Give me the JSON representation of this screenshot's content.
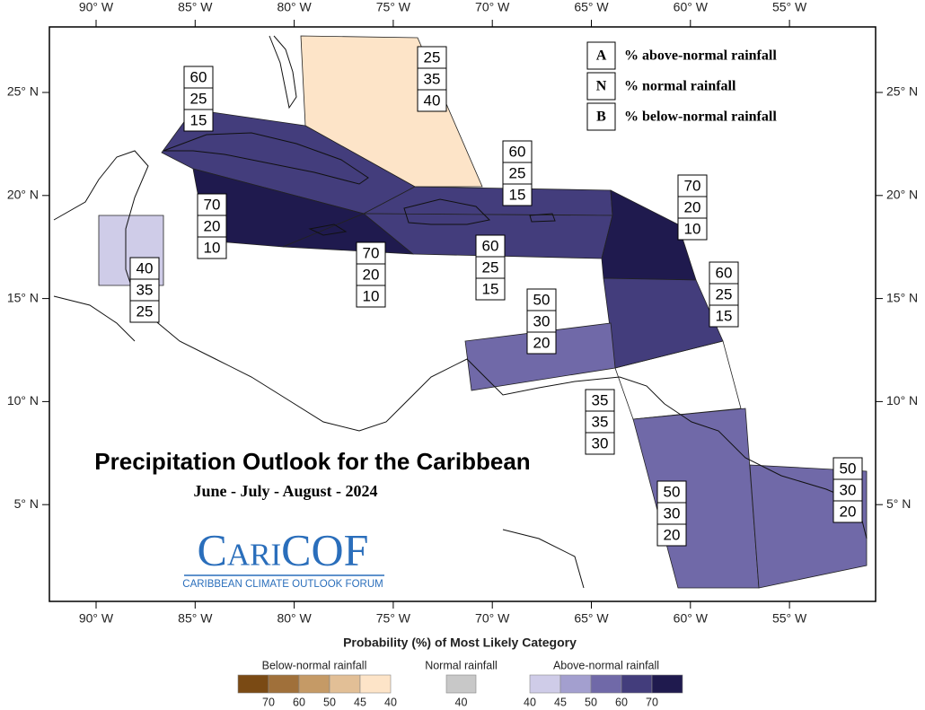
{
  "map": {
    "title": "Precipitation Outlook for the Caribbean",
    "subtitle": "June - July - August - 2024",
    "logo": {
      "name": "CariCOF",
      "tagline": "CARIBBEAN CLIMATE OUTLOOK FORUM"
    },
    "lon_labels": [
      "90° W",
      "85° W",
      "80° W",
      "75° W",
      "70° W",
      "65° W",
      "60° W",
      "55° W"
    ],
    "lat_labels": [
      "25° N",
      "20° N",
      "15° N",
      "10° N",
      "5° N"
    ],
    "key": [
      {
        "letter": "A",
        "text": "% above-normal rainfall"
      },
      {
        "letter": "N",
        "text": "% normal rainfall"
      },
      {
        "letter": "B",
        "text": "% below-normal rainfall"
      }
    ],
    "regions": [
      {
        "values": [
          25,
          35,
          40
        ]
      },
      {
        "values": [
          60,
          25,
          15
        ]
      },
      {
        "values": [
          70,
          20,
          10
        ]
      },
      {
        "values": [
          70,
          20,
          10
        ]
      },
      {
        "values": [
          60,
          25,
          15
        ]
      },
      {
        "values": [
          60,
          25,
          15
        ]
      },
      {
        "values": [
          70,
          20,
          10
        ]
      },
      {
        "values": [
          60,
          25,
          15
        ]
      },
      {
        "values": [
          50,
          30,
          20
        ]
      },
      {
        "values": [
          35,
          35,
          30
        ]
      },
      {
        "values": [
          50,
          30,
          20
        ]
      },
      {
        "values": [
          50,
          30,
          20
        ]
      },
      {
        "values": [
          40,
          35,
          25
        ]
      }
    ],
    "legend": {
      "title": "Probability (%) of Most Likely Category",
      "groups": [
        {
          "label": "Below-normal rainfall",
          "ticks": [
            70,
            60,
            50,
            45,
            40
          ],
          "colors": [
            "#7a4a14",
            "#a0703a",
            "#c59a66",
            "#e2bf96",
            "#fde4c8"
          ]
        },
        {
          "label": "Normal rainfall",
          "ticks": [
            40
          ],
          "colors": [
            "#c8c8c8"
          ]
        },
        {
          "label": "Above-normal rainfall",
          "ticks": [
            40,
            45,
            50,
            60,
            70
          ],
          "colors": [
            "#cfcce8",
            "#a39fcf",
            "#7069a8",
            "#433d7c",
            "#1f1a4e"
          ]
        }
      ]
    }
  }
}
